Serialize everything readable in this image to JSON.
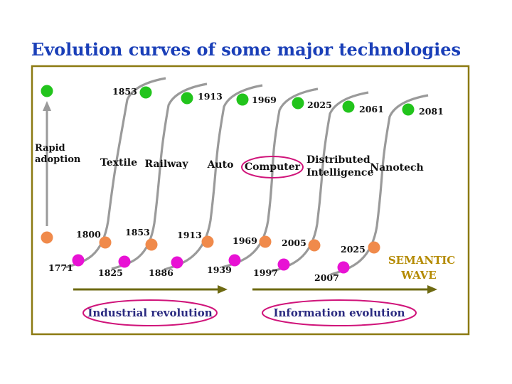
{
  "title": "Evolution curves of some major  technologies",
  "colors": {
    "title": "#1a3fb8",
    "frame": "#8c7a12",
    "curve": "#9a9a9a",
    "top_dot": "#22c41c",
    "mid_dot": "#f08a4b",
    "low_dot": "#e812d4",
    "arrow": "#6e6a12",
    "highlight_ring": "#d0147a",
    "wave_label": "#b48a00",
    "label": "#111111"
  },
  "axis": {
    "label_line1": "Rapid",
    "label_line2": "adoption"
  },
  "technologies": [
    {
      "name": "Textile",
      "start": "1771",
      "mid": "1800",
      "end": "1853",
      "highlighted": false
    },
    {
      "name": "Railway",
      "start": "1825",
      "mid": "1853",
      "end": "1913",
      "highlighted": false
    },
    {
      "name": "Auto",
      "start": "1886",
      "mid": "1913",
      "end": "1969",
      "highlighted": false
    },
    {
      "name": "Computer",
      "start": "1939",
      "mid": "1969",
      "end": "2025",
      "highlighted": true
    },
    {
      "name_line1": "Distributed",
      "name_line2": "Intelligence",
      "start": "1997",
      "mid": "2005",
      "end": "2061",
      "highlighted": false
    },
    {
      "name": "Nanotech",
      "start": "2007",
      "mid": "2025",
      "end": "2081",
      "highlighted": false
    }
  ],
  "semantic_wave": {
    "line1": "SEMANTIC",
    "line2": "WAVE"
  },
  "eras": {
    "industrial": "Industrial revolution",
    "information": "Information evolution"
  }
}
